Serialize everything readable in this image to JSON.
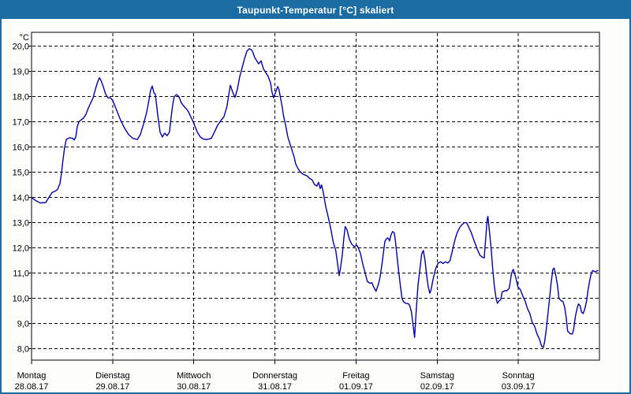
{
  "window": {
    "title": "Taupunkt-Temperatur [°C] skaliert"
  },
  "colors": {
    "titlebar_bg": "#1b6ca3",
    "titlebar_text": "#ffffff",
    "window_border": "#1b6ca3",
    "page_bg": "#fcfdfa",
    "plot_bg": "#ffffff",
    "grid": "#000000",
    "series": "#0000b0"
  },
  "chart_data": {
    "type": "line",
    "title": "Taupunkt-Temperatur [°C] skaliert",
    "ylabel": "°C",
    "grid": "dashed",
    "legend": "none",
    "ylim": [
      7.55,
      20.55
    ],
    "x_range_hours": [
      0,
      168
    ],
    "y_ticks": [
      {
        "label": "20,0",
        "value": 20
      },
      {
        "label": "19,0",
        "value": 19
      },
      {
        "label": "18,0",
        "value": 18
      },
      {
        "label": "17,0",
        "value": 17
      },
      {
        "label": "16,0",
        "value": 16
      },
      {
        "label": "15,0",
        "value": 15
      },
      {
        "label": "14,0",
        "value": 14
      },
      {
        "label": "13,0",
        "value": 13
      },
      {
        "label": "12,0",
        "value": 12
      },
      {
        "label": "11,0",
        "value": 11
      },
      {
        "label": "10,0",
        "value": 10
      },
      {
        "label": "9,0",
        "value": 9
      },
      {
        "label": "8,0",
        "value": 8
      }
    ],
    "days": [
      {
        "name": "Montag",
        "date": "28.08.17",
        "start_hour": 0
      },
      {
        "name": "Dienstag",
        "date": "29.08.17",
        "start_hour": 24
      },
      {
        "name": "Mittwoch",
        "date": "30.08.17",
        "start_hour": 48
      },
      {
        "name": "Donnerstag",
        "date": "31.08.17",
        "start_hour": 72
      },
      {
        "name": "Freitag",
        "date": "01.09.17",
        "start_hour": 96
      },
      {
        "name": "Samstag",
        "date": "02.09.17",
        "start_hour": 120
      },
      {
        "name": "Sonntag",
        "date": "03.09.17",
        "start_hour": 144
      }
    ],
    "series": [
      {
        "color": "#0000b0",
        "points": [
          [
            0.0,
            14.0
          ],
          [
            1.2,
            13.88
          ],
          [
            2.6,
            13.78
          ],
          [
            4.2,
            13.8
          ],
          [
            5.1,
            14.0
          ],
          [
            6.1,
            14.2
          ],
          [
            7.0,
            14.25
          ],
          [
            7.7,
            14.32
          ],
          [
            8.4,
            14.55
          ],
          [
            8.9,
            15.0
          ],
          [
            9.3,
            15.5
          ],
          [
            9.8,
            16.0
          ],
          [
            10.3,
            16.3
          ],
          [
            11.2,
            16.37
          ],
          [
            12.1,
            16.35
          ],
          [
            12.6,
            16.28
          ],
          [
            13.1,
            16.4
          ],
          [
            13.5,
            16.8
          ],
          [
            14.0,
            17.0
          ],
          [
            14.7,
            17.08
          ],
          [
            15.4,
            17.15
          ],
          [
            16.1,
            17.3
          ],
          [
            16.8,
            17.55
          ],
          [
            17.5,
            17.75
          ],
          [
            18.2,
            17.95
          ],
          [
            18.9,
            18.3
          ],
          [
            19.6,
            18.6
          ],
          [
            20.1,
            18.75
          ],
          [
            20.5,
            18.65
          ],
          [
            21.2,
            18.4
          ],
          [
            21.9,
            18.1
          ],
          [
            22.6,
            17.95
          ],
          [
            23.3,
            17.95
          ],
          [
            24.0,
            17.85
          ],
          [
            25.2,
            17.45
          ],
          [
            26.4,
            17.05
          ],
          [
            27.5,
            16.75
          ],
          [
            28.7,
            16.5
          ],
          [
            29.9,
            16.35
          ],
          [
            31.3,
            16.3
          ],
          [
            32.2,
            16.5
          ],
          [
            33.1,
            16.9
          ],
          [
            34.1,
            17.4
          ],
          [
            34.8,
            17.9
          ],
          [
            35.2,
            18.25
          ],
          [
            35.7,
            18.42
          ],
          [
            36.2,
            18.15
          ],
          [
            36.6,
            18.1
          ],
          [
            37.3,
            17.3
          ],
          [
            38.0,
            16.6
          ],
          [
            38.7,
            16.4
          ],
          [
            39.4,
            16.55
          ],
          [
            40.1,
            16.45
          ],
          [
            40.8,
            16.6
          ],
          [
            41.3,
            17.2
          ],
          [
            41.8,
            17.7
          ],
          [
            42.2,
            18.0
          ],
          [
            42.9,
            18.08
          ],
          [
            43.6,
            18.0
          ],
          [
            44.3,
            17.75
          ],
          [
            45.2,
            17.6
          ],
          [
            46.2,
            17.45
          ],
          [
            47.1,
            17.2
          ],
          [
            48.0,
            16.95
          ],
          [
            49.0,
            16.6
          ],
          [
            49.9,
            16.4
          ],
          [
            50.8,
            16.32
          ],
          [
            52.0,
            16.3
          ],
          [
            53.2,
            16.35
          ],
          [
            54.1,
            16.6
          ],
          [
            55.0,
            16.85
          ],
          [
            56.0,
            17.05
          ],
          [
            56.9,
            17.2
          ],
          [
            57.8,
            17.6
          ],
          [
            58.5,
            18.2
          ],
          [
            58.8,
            18.45
          ],
          [
            59.2,
            18.3
          ],
          [
            59.7,
            18.1
          ],
          [
            60.2,
            17.97
          ],
          [
            60.9,
            18.3
          ],
          [
            61.6,
            18.8
          ],
          [
            62.3,
            19.15
          ],
          [
            63.0,
            19.5
          ],
          [
            63.7,
            19.8
          ],
          [
            64.4,
            19.9
          ],
          [
            65.1,
            19.85
          ],
          [
            65.5,
            19.75
          ],
          [
            66.0,
            19.55
          ],
          [
            66.7,
            19.4
          ],
          [
            67.2,
            19.3
          ],
          [
            67.9,
            19.42
          ],
          [
            68.6,
            19.1
          ],
          [
            69.3,
            18.95
          ],
          [
            70.0,
            18.8
          ],
          [
            70.7,
            18.55
          ],
          [
            71.1,
            18.2
          ],
          [
            71.6,
            17.95
          ],
          [
            72.0,
            18.1
          ],
          [
            72.8,
            18.4
          ],
          [
            73.2,
            18.28
          ],
          [
            73.7,
            17.9
          ],
          [
            74.2,
            17.55
          ],
          [
            74.6,
            17.2
          ],
          [
            75.1,
            16.9
          ],
          [
            75.8,
            16.4
          ],
          [
            76.5,
            16.1
          ],
          [
            77.0,
            15.9
          ],
          [
            77.7,
            15.6
          ],
          [
            78.1,
            15.35
          ],
          [
            78.8,
            15.15
          ],
          [
            79.3,
            15.05
          ],
          [
            80.0,
            14.95
          ],
          [
            80.7,
            14.9
          ],
          [
            81.6,
            14.85
          ],
          [
            82.3,
            14.75
          ],
          [
            83.0,
            14.7
          ],
          [
            83.7,
            14.52
          ],
          [
            84.4,
            14.45
          ],
          [
            84.9,
            14.6
          ],
          [
            85.4,
            14.35
          ],
          [
            85.8,
            14.5
          ],
          [
            86.3,
            14.2
          ],
          [
            87.0,
            13.65
          ],
          [
            87.9,
            13.15
          ],
          [
            88.6,
            12.7
          ],
          [
            89.3,
            12.2
          ],
          [
            90.0,
            11.9
          ],
          [
            90.5,
            11.4
          ],
          [
            91.0,
            10.9
          ],
          [
            91.4,
            11.2
          ],
          [
            91.9,
            11.7
          ],
          [
            92.4,
            12.4
          ],
          [
            92.8,
            12.85
          ],
          [
            93.3,
            12.72
          ],
          [
            94.0,
            12.35
          ],
          [
            94.7,
            12.15
          ],
          [
            95.4,
            12.05
          ],
          [
            95.9,
            12.08
          ],
          [
            96.3,
            12.1
          ],
          [
            96.8,
            11.95
          ],
          [
            97.3,
            11.78
          ],
          [
            98.0,
            11.35
          ],
          [
            98.6,
            11.05
          ],
          [
            99.3,
            10.68
          ],
          [
            100.0,
            10.6
          ],
          [
            100.7,
            10.62
          ],
          [
            101.2,
            10.45
          ],
          [
            101.9,
            10.28
          ],
          [
            102.6,
            10.55
          ],
          [
            103.1,
            10.85
          ],
          [
            103.5,
            11.2
          ],
          [
            104.0,
            11.7
          ],
          [
            104.5,
            12.25
          ],
          [
            104.9,
            12.35
          ],
          [
            105.4,
            12.4
          ],
          [
            105.9,
            12.28
          ],
          [
            106.3,
            12.5
          ],
          [
            106.8,
            12.65
          ],
          [
            107.3,
            12.6
          ],
          [
            107.7,
            12.2
          ],
          [
            108.4,
            11.3
          ],
          [
            109.1,
            10.5
          ],
          [
            109.6,
            10.0
          ],
          [
            110.1,
            9.85
          ],
          [
            110.8,
            9.8
          ],
          [
            111.5,
            9.78
          ],
          [
            111.9,
            9.7
          ],
          [
            112.4,
            9.45
          ],
          [
            112.9,
            8.9
          ],
          [
            113.3,
            8.45
          ],
          [
            113.8,
            9.5
          ],
          [
            114.3,
            10.5
          ],
          [
            115.0,
            11.3
          ],
          [
            115.4,
            11.75
          ],
          [
            115.9,
            11.9
          ],
          [
            116.4,
            11.5
          ],
          [
            116.8,
            11.0
          ],
          [
            117.3,
            10.5
          ],
          [
            117.8,
            10.2
          ],
          [
            118.2,
            10.35
          ],
          [
            118.7,
            10.7
          ],
          [
            119.2,
            11.0
          ],
          [
            119.6,
            11.2
          ],
          [
            120.3,
            11.4
          ],
          [
            121.0,
            11.45
          ],
          [
            121.7,
            11.38
          ],
          [
            122.4,
            11.45
          ],
          [
            123.1,
            11.4
          ],
          [
            123.8,
            11.5
          ],
          [
            124.5,
            11.9
          ],
          [
            125.2,
            12.3
          ],
          [
            125.9,
            12.6
          ],
          [
            126.6,
            12.8
          ],
          [
            127.3,
            12.92
          ],
          [
            128.0,
            13.0
          ],
          [
            128.7,
            13.0
          ],
          [
            129.4,
            12.8
          ],
          [
            130.1,
            12.6
          ],
          [
            130.6,
            12.4
          ],
          [
            131.3,
            12.15
          ],
          [
            132.0,
            11.9
          ],
          [
            132.7,
            11.7
          ],
          [
            133.4,
            11.63
          ],
          [
            133.9,
            11.6
          ],
          [
            134.3,
            12.3
          ],
          [
            134.8,
            13.15
          ],
          [
            135.0,
            13.25
          ],
          [
            135.5,
            12.6
          ],
          [
            136.0,
            11.9
          ],
          [
            136.4,
            11.2
          ],
          [
            136.9,
            10.5
          ],
          [
            137.4,
            10.0
          ],
          [
            137.8,
            9.8
          ],
          [
            138.3,
            9.9
          ],
          [
            138.8,
            9.95
          ],
          [
            139.2,
            10.25
          ],
          [
            139.9,
            10.3
          ],
          [
            140.6,
            10.3
          ],
          [
            141.3,
            10.4
          ],
          [
            142.0,
            11.0
          ],
          [
            142.5,
            11.15
          ],
          [
            143.2,
            10.85
          ],
          [
            143.9,
            10.45
          ],
          [
            144.6,
            10.35
          ],
          [
            145.3,
            10.1
          ],
          [
            146.0,
            9.9
          ],
          [
            146.7,
            9.6
          ],
          [
            147.4,
            9.4
          ],
          [
            148.1,
            9.05
          ],
          [
            148.8,
            8.9
          ],
          [
            149.5,
            8.6
          ],
          [
            150.2,
            8.4
          ],
          [
            150.9,
            8.1
          ],
          [
            151.4,
            8.05
          ],
          [
            151.8,
            8.3
          ],
          [
            152.3,
            8.8
          ],
          [
            152.8,
            9.45
          ],
          [
            153.2,
            9.95
          ],
          [
            153.7,
            10.6
          ],
          [
            154.2,
            11.15
          ],
          [
            154.6,
            11.2
          ],
          [
            155.1,
            10.9
          ],
          [
            155.6,
            10.5
          ],
          [
            156.0,
            10.0
          ],
          [
            156.7,
            9.9
          ],
          [
            157.2,
            9.88
          ],
          [
            157.7,
            9.65
          ],
          [
            158.1,
            9.3
          ],
          [
            158.6,
            8.7
          ],
          [
            159.3,
            8.6
          ],
          [
            160.0,
            8.58
          ],
          [
            160.4,
            8.8
          ],
          [
            160.9,
            9.3
          ],
          [
            161.4,
            9.6
          ],
          [
            161.8,
            9.78
          ],
          [
            162.3,
            9.7
          ],
          [
            162.7,
            9.45
          ],
          [
            163.2,
            9.4
          ],
          [
            163.7,
            9.6
          ],
          [
            164.2,
            9.9
          ],
          [
            164.6,
            10.3
          ],
          [
            165.1,
            10.7
          ],
          [
            165.6,
            11.0
          ],
          [
            166.0,
            11.1
          ],
          [
            166.7,
            11.05
          ],
          [
            167.5,
            11.1
          ]
        ]
      }
    ]
  }
}
